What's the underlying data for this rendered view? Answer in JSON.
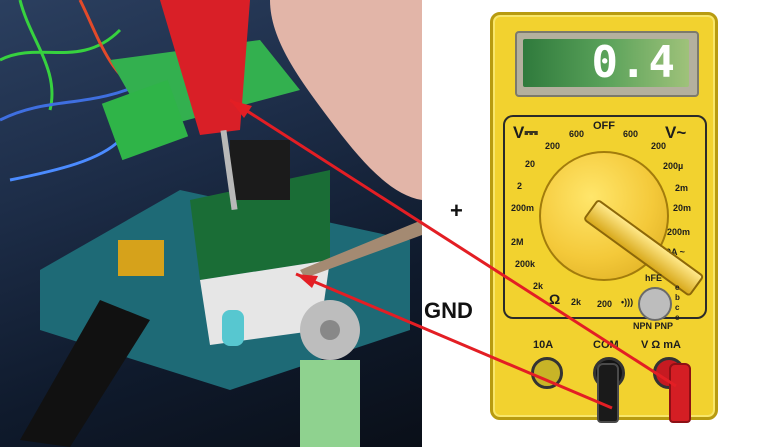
{
  "multimeter": {
    "display_value": "0.4",
    "dc_volts_label": "V⎓",
    "ac_volts_label": "V~",
    "off_label": "OFF",
    "dc_ranges": [
      "600",
      "200",
      "20",
      "2",
      "200m"
    ],
    "ac_ranges": [
      "600",
      "200"
    ],
    "current_ranges": [
      "200µ",
      "2m",
      "20m",
      "200m",
      "10A ~"
    ],
    "resistance_ranges": [
      "2M",
      "200k",
      "2k",
      "2k",
      "200"
    ],
    "ohm_label": "Ω",
    "continuity_label": "•)))",
    "hfe_label": "hFE",
    "transistor_pins": [
      "e",
      "b",
      "c",
      "e"
    ],
    "transistor_types": "NPN PNP",
    "jack_labels": [
      "10A",
      "COM",
      "V Ω mA"
    ]
  },
  "annotations": {
    "plus_label": "+",
    "gnd_label": "GND"
  },
  "colors": {
    "meter_body": "#f2d22f",
    "probe_red": "#d41e24",
    "probe_black": "#1a1a1a",
    "lead_line": "#e31e24"
  }
}
